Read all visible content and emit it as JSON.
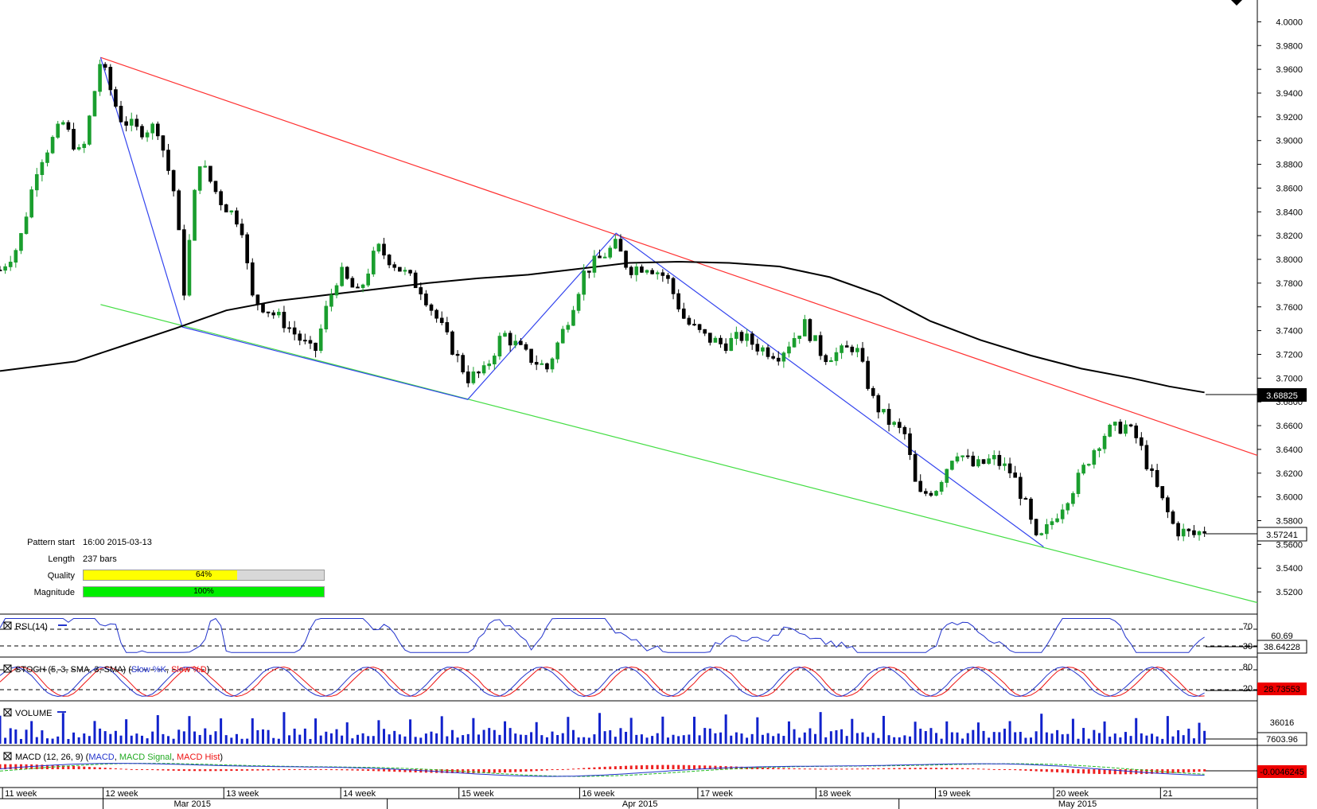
{
  "chart_data": {
    "type": "candlestick",
    "price_axis": {
      "ticks": [
        "4.0000",
        "3.9800",
        "3.9600",
        "3.9400",
        "3.9200",
        "3.9000",
        "3.8800",
        "3.8600",
        "3.8400",
        "3.8200",
        "3.8000",
        "3.7800",
        "3.7600",
        "3.7400",
        "3.7200",
        "3.7000",
        "3.6800",
        "3.6600",
        "3.6400",
        "3.6200",
        "3.6000",
        "3.5800",
        "3.5600",
        "3.5400",
        "3.5200"
      ],
      "range": [
        3.506,
        4.013
      ],
      "ma_label": "3.68825",
      "last_label": "3.57241"
    },
    "time_axis": {
      "weeks": [
        "11 week",
        "12 week",
        "13 week",
        "14 week",
        "15 week",
        "16 week",
        "17 week",
        "18 week",
        "19 week",
        "20 week",
        "21"
      ],
      "months": [
        "Mar 2015",
        "Apr 2015",
        "May 2015"
      ]
    },
    "pattern_lines": {
      "resistance": [
        [
          0.08,
          3.97
        ],
        [
          1.0,
          3.635
        ]
      ],
      "support": [
        [
          0.08,
          3.762
        ],
        [
          1.0,
          3.511
        ]
      ],
      "zigzag": [
        [
          0.08,
          3.97
        ],
        [
          0.145,
          3.743
        ],
        [
          0.372,
          3.682
        ],
        [
          0.49,
          3.822
        ],
        [
          0.83,
          3.558
        ]
      ]
    },
    "price_anchors": [
      [
        0.0,
        3.791
      ],
      [
        0.015,
        3.812
      ],
      [
        0.03,
        3.88
      ],
      [
        0.05,
        3.915
      ],
      [
        0.065,
        3.885
      ],
      [
        0.08,
        3.968
      ],
      [
        0.095,
        3.92
      ],
      [
        0.11,
        3.908
      ],
      [
        0.125,
        3.912
      ],
      [
        0.14,
        3.85
      ],
      [
        0.146,
        3.77
      ],
      [
        0.158,
        3.885
      ],
      [
        0.175,
        3.85
      ],
      [
        0.192,
        3.83
      ],
      [
        0.2,
        3.768
      ],
      [
        0.225,
        3.748
      ],
      [
        0.25,
        3.72
      ],
      [
        0.26,
        3.76
      ],
      [
        0.27,
        3.79
      ],
      [
        0.285,
        3.77
      ],
      [
        0.3,
        3.81
      ],
      [
        0.315,
        3.795
      ],
      [
        0.335,
        3.775
      ],
      [
        0.35,
        3.745
      ],
      [
        0.372,
        3.7
      ],
      [
        0.385,
        3.705
      ],
      [
        0.4,
        3.738
      ],
      [
        0.42,
        3.718
      ],
      [
        0.435,
        3.708
      ],
      [
        0.45,
        3.745
      ],
      [
        0.465,
        3.79
      ],
      [
        0.49,
        3.812
      ],
      [
        0.5,
        3.792
      ],
      [
        0.515,
        3.795
      ],
      [
        0.53,
        3.785
      ],
      [
        0.545,
        3.748
      ],
      [
        0.56,
        3.735
      ],
      [
        0.575,
        3.728
      ],
      [
        0.59,
        3.735
      ],
      [
        0.605,
        3.725
      ],
      [
        0.62,
        3.72
      ],
      [
        0.64,
        3.745
      ],
      [
        0.655,
        3.718
      ],
      [
        0.67,
        3.722
      ],
      [
        0.68,
        3.728
      ],
      [
        0.695,
        3.68
      ],
      [
        0.705,
        3.665
      ],
      [
        0.72,
        3.652
      ],
      [
        0.73,
        3.6
      ],
      [
        0.745,
        3.608
      ],
      [
        0.76,
        3.64
      ],
      [
        0.775,
        3.625
      ],
      [
        0.79,
        3.632
      ],
      [
        0.805,
        3.62
      ],
      [
        0.815,
        3.595
      ],
      [
        0.825,
        3.56
      ],
      [
        0.84,
        3.585
      ],
      [
        0.855,
        3.61
      ],
      [
        0.87,
        3.64
      ],
      [
        0.88,
        3.655
      ],
      [
        0.895,
        3.66
      ],
      [
        0.905,
        3.648
      ],
      [
        0.915,
        3.62
      ],
      [
        0.925,
        3.595
      ],
      [
        0.935,
        3.572
      ],
      [
        0.95,
        3.568
      ],
      [
        0.958,
        3.572
      ]
    ],
    "bar_count": 230,
    "ma_curve": [
      [
        0.0,
        3.706
      ],
      [
        0.06,
        3.714
      ],
      [
        0.1,
        3.728
      ],
      [
        0.14,
        3.742
      ],
      [
        0.18,
        3.757
      ],
      [
        0.22,
        3.765
      ],
      [
        0.26,
        3.77
      ],
      [
        0.3,
        3.775
      ],
      [
        0.34,
        3.78
      ],
      [
        0.38,
        3.784
      ],
      [
        0.42,
        3.787
      ],
      [
        0.46,
        3.792
      ],
      [
        0.5,
        3.797
      ],
      [
        0.54,
        3.798
      ],
      [
        0.58,
        3.797
      ],
      [
        0.62,
        3.794
      ],
      [
        0.66,
        3.785
      ],
      [
        0.7,
        3.77
      ],
      [
        0.74,
        3.748
      ],
      [
        0.78,
        3.732
      ],
      [
        0.82,
        3.719
      ],
      [
        0.86,
        3.708
      ],
      [
        0.9,
        3.7
      ],
      [
        0.93,
        3.693
      ],
      [
        0.958,
        3.688
      ]
    ],
    "pattern_info": {
      "start_label": "Pattern start",
      "start_value": "16:00 2015-03-13",
      "length_label": "Length",
      "length_value": "237 bars",
      "quality_label": "Quality",
      "quality_value": 64,
      "quality_text": "64%",
      "magnitude_label": "Magnitude",
      "magnitude_value": 100,
      "magnitude_text": "100%"
    },
    "rsi": {
      "title": "RSI (14)",
      "levels": [
        "70",
        "30"
      ],
      "extra_label": "60.69",
      "value": "38.64228",
      "range": [
        15,
        80
      ]
    },
    "stoch": {
      "title_prefix": "STOCH (5, 3, SMA, 3, SMA)",
      "k_name": "Slow %K",
      "d_name": "Slow %D",
      "levels": [
        "80",
        "20"
      ],
      "value": "28.73553"
    },
    "volume": {
      "title": "VOLUME",
      "max_label": "36016",
      "value": "7603.96"
    },
    "macd": {
      "title_prefix": "MACD (12, 26, 9)",
      "macd_name": "MACD",
      "signal_name": "MACD Signal",
      "hist_name": "MACD Hist",
      "value": "-0.0046245"
    },
    "colors": {
      "bull": "#1a9e2e",
      "bear": "#000000",
      "resistance": "#ff3030",
      "support": "#44dd44",
      "zigzag": "#3344ee",
      "ma": "#000000",
      "quality": "#ffff00",
      "magnitude": "#00ee00",
      "value_box": "#000000",
      "value_box_red": "#ee0000"
    }
  }
}
